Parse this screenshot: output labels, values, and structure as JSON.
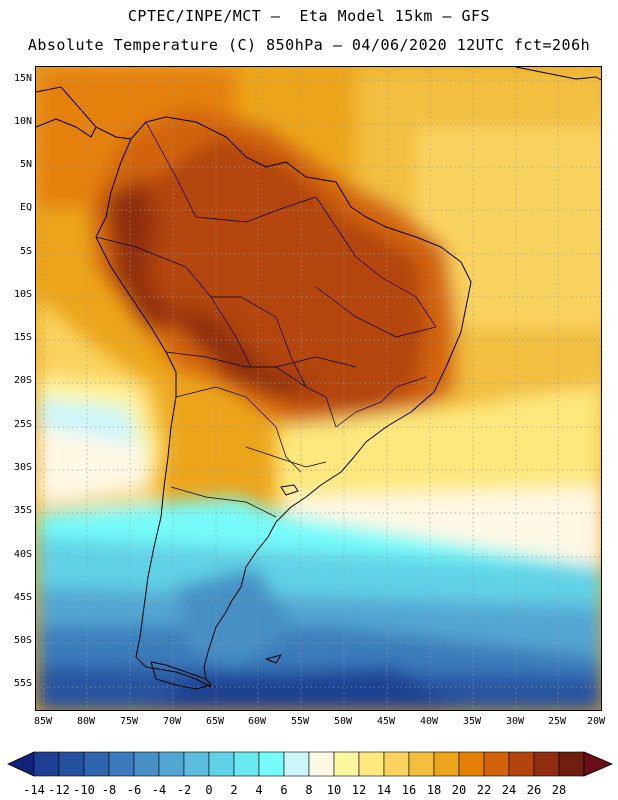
{
  "title": {
    "line1": "CPTEC/INPE/MCT –  Eta Model 15km – GFS",
    "line2": "Absolute Temperature (C) 850hPa – 04/06/2020 12UTC fct=206h"
  },
  "map": {
    "latitude_labels": [
      "15N",
      "10N",
      "5N",
      "EQ",
      "5S",
      "10S",
      "15S",
      "20S",
      "25S",
      "30S",
      "35S",
      "40S",
      "45S",
      "50S",
      "55S"
    ],
    "longitude_labels": [
      "85W",
      "80W",
      "75W",
      "70W",
      "65W",
      "60W",
      "55W",
      "50W",
      "45W",
      "40W",
      "35W",
      "30W",
      "25W",
      "20W"
    ]
  },
  "colorbar": {
    "labels": [
      "-14",
      "-12",
      "-10",
      "-8",
      "-6",
      "-4",
      "-2",
      "0",
      "2",
      "4",
      "6",
      "8",
      "10",
      "12",
      "14",
      "16",
      "18",
      "20",
      "22",
      "24",
      "26",
      "28"
    ],
    "colors": [
      "#1d3f93",
      "#25529f",
      "#2f65ad",
      "#3b7bbb",
      "#4790c6",
      "#52a6d2",
      "#5cbcdd",
      "#60d2e6",
      "#6ae8ef",
      "#76fbfa",
      "#cdf6fb",
      "#fff8e4",
      "#fff6a0",
      "#fde87d",
      "#f9d35e",
      "#f2bf3f",
      "#eca51b",
      "#e58007",
      "#d2630a",
      "#b3450c",
      "#8f2e10",
      "#6e1f10"
    ],
    "under_color": "#12247a",
    "over_color": "#6a0d14"
  }
}
